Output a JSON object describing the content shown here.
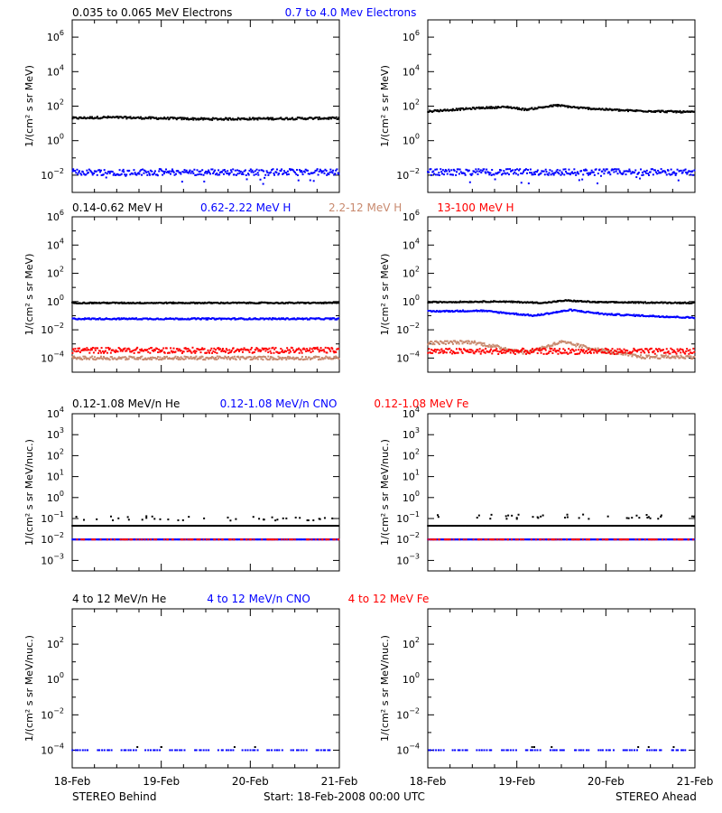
{
  "footer": {
    "left": "STEREO Behind",
    "center": "Start: 18-Feb-2008 00:00 UTC",
    "right": "STEREO Ahead"
  },
  "x_tick_labels": [
    "18-Feb",
    "19-Feb",
    "20-Feb",
    "21-Feb"
  ],
  "x_range_days": [
    0,
    3
  ],
  "chart_data": [
    {
      "type": "scatter",
      "row": "electrons",
      "spacecraft": "STEREO Behind",
      "title": "",
      "legend": [
        {
          "text": "0.035 to 0.065 MeV Electrons",
          "color": "#000000"
        },
        {
          "text": "0.7 to 4.0 Mev Electrons",
          "color": "#0000ff"
        }
      ],
      "ylabel": "1/(cm² s sr MeV)",
      "yscale": "log",
      "ylim_exp": [
        -3,
        7
      ],
      "ytick_exps": [
        -2,
        0,
        2,
        4,
        6
      ],
      "xlabel": "",
      "series": [
        {
          "name": "0.035 to 0.065 MeV Electrons",
          "color": "#000000",
          "level": 20,
          "noise": 0.06,
          "profile": [
            [
              0,
              0
            ],
            [
              0.4,
              0.05
            ],
            [
              1.5,
              -0.05
            ],
            [
              3,
              0
            ]
          ]
        },
        {
          "name": "0.7 to 4.0 Mev Electrons",
          "color": "#0000ff",
          "level": 0.015,
          "noise": 0.18,
          "profile": [
            [
              0,
              0
            ],
            [
              3,
              0
            ]
          ],
          "dips": true
        }
      ]
    },
    {
      "type": "scatter",
      "row": "electrons",
      "spacecraft": "STEREO Ahead",
      "title": "",
      "legend": [],
      "ylabel": "1/(cm² s sr MeV)",
      "yscale": "log",
      "ylim_exp": [
        -3,
        7
      ],
      "ytick_exps": [
        -2,
        0,
        2,
        4,
        6
      ],
      "xlabel": "",
      "series": [
        {
          "name": "0.035 to 0.065 MeV Electrons",
          "color": "#000000",
          "level": 50,
          "noise": 0.05,
          "profile": [
            [
              0,
              0
            ],
            [
              0.6,
              0.2
            ],
            [
              0.9,
              0.25
            ],
            [
              1.1,
              0.1
            ],
            [
              1.45,
              0.35
            ],
            [
              1.7,
              0.2
            ],
            [
              2.2,
              0.05
            ],
            [
              3,
              -0.05
            ]
          ]
        },
        {
          "name": "0.7 to 4.0 Mev Electrons",
          "color": "#0000ff",
          "level": 0.015,
          "noise": 0.18,
          "profile": [
            [
              0,
              0
            ],
            [
              3,
              0
            ]
          ],
          "dips": true
        }
      ]
    },
    {
      "type": "scatter",
      "row": "protons",
      "spacecraft": "STEREO Behind",
      "title": "",
      "legend": [
        {
          "text": "0.14-0.62 MeV H",
          "color": "#000000"
        },
        {
          "text": "0.62-2.22 MeV H",
          "color": "#0000ff"
        },
        {
          "text": "2.2-12 MeV H",
          "color": "#c8896e"
        },
        {
          "text": "13-100 MeV H",
          "color": "#ff0000"
        }
      ],
      "ylabel": "1/(cm² s sr MeV)",
      "yscale": "log",
      "ylim_exp": [
        -5,
        6
      ],
      "ytick_exps": [
        -4,
        -2,
        0,
        2,
        4,
        6
      ],
      "xlabel": "",
      "series": [
        {
          "name": "0.14-0.62 MeV H",
          "color": "#000000",
          "level": 0.8,
          "noise": 0.04,
          "profile": [
            [
              0,
              0
            ],
            [
              3,
              0
            ]
          ]
        },
        {
          "name": "0.62-2.22 MeV H",
          "color": "#0000ff",
          "level": 0.06,
          "noise": 0.05,
          "profile": [
            [
              0,
              0
            ],
            [
              3,
              0
            ]
          ]
        },
        {
          "name": "2.2-12 MeV H",
          "color": "#c8896e",
          "level": 0.0001,
          "noise": 0.12,
          "profile": [
            [
              0,
              0
            ],
            [
              3,
              0
            ]
          ]
        },
        {
          "name": "13-100 MeV H",
          "color": "#ff0000",
          "level": 0.00035,
          "noise": 0.2,
          "profile": [
            [
              0,
              0
            ],
            [
              3,
              0
            ]
          ]
        }
      ]
    },
    {
      "type": "scatter",
      "row": "protons",
      "spacecraft": "STEREO Ahead",
      "title": "",
      "legend": [],
      "ylabel": "1/(cm² s sr MeV)",
      "yscale": "log",
      "ylim_exp": [
        -5,
        6
      ],
      "ytick_exps": [
        -4,
        -2,
        0,
        2,
        4,
        6
      ],
      "xlabel": "",
      "series": [
        {
          "name": "0.14-0.62 MeV H",
          "color": "#000000",
          "level": 0.9,
          "noise": 0.04,
          "profile": [
            [
              0,
              0
            ],
            [
              0.8,
              0.05
            ],
            [
              1.3,
              -0.05
            ],
            [
              1.55,
              0.12
            ],
            [
              1.9,
              0.0
            ],
            [
              3,
              -0.05
            ]
          ]
        },
        {
          "name": "0.62-2.22 MeV H",
          "color": "#0000ff",
          "level": 0.2,
          "noise": 0.05,
          "profile": [
            [
              0,
              0
            ],
            [
              0.6,
              0.05
            ],
            [
              1.2,
              -0.3
            ],
            [
              1.6,
              0.1
            ],
            [
              2.0,
              -0.2
            ],
            [
              3,
              -0.45
            ]
          ]
        },
        {
          "name": "2.2-12 MeV H",
          "color": "#c8896e",
          "level": 0.0012,
          "noise": 0.12,
          "profile": [
            [
              0,
              0
            ],
            [
              0.5,
              0.05
            ],
            [
              1.1,
              -0.7
            ],
            [
              1.5,
              0.05
            ],
            [
              2.0,
              -0.6
            ],
            [
              2.4,
              -1.0
            ],
            [
              3,
              -1.0
            ]
          ]
        },
        {
          "name": "13-100 MeV H",
          "color": "#ff0000",
          "level": 0.0003,
          "noise": 0.2,
          "profile": [
            [
              0,
              0
            ],
            [
              3,
              0
            ]
          ]
        }
      ]
    },
    {
      "type": "scatter",
      "row": "heavy-low",
      "spacecraft": "STEREO Behind",
      "title": "",
      "legend": [
        {
          "text": "0.12-1.08 MeV/n He",
          "color": "#000000"
        },
        {
          "text": "0.12-1.08 MeV/n CNO",
          "color": "#0000ff"
        },
        {
          "text": "0.12-1.08 MeV Fe",
          "color": "#ff0000"
        }
      ],
      "ylabel": "1/(cm² s sr MeV/nuc.)",
      "yscale": "log",
      "ylim_exp": [
        -3.5,
        4
      ],
      "ytick_exps": [
        -3,
        -2,
        -1,
        0,
        1,
        2,
        3,
        4
      ],
      "xlabel": "",
      "series": [
        {
          "name": "0.12-1.08 MeV/n He",
          "color": "#000000",
          "level": 0.045,
          "noise": 0,
          "profile": [
            [
              0,
              0
            ],
            [
              3,
              0
            ]
          ],
          "sparse_high": 0.1
        },
        {
          "name": "0.12-1.08 MeV/n CNO",
          "color": "#0000ff",
          "level": 0.01,
          "noise": 0,
          "profile": [
            [
              0,
              0
            ],
            [
              3,
              0
            ]
          ]
        },
        {
          "name": "0.12-1.08 MeV Fe",
          "color": "#ff0000",
          "level": 0.01,
          "noise": 0,
          "profile": [
            [
              0,
              0
            ],
            [
              3,
              0
            ]
          ],
          "sparse": true
        }
      ]
    },
    {
      "type": "scatter",
      "row": "heavy-low",
      "spacecraft": "STEREO Ahead",
      "title": "",
      "legend": [],
      "ylabel": "1/(cm² s sr MeV/nuc.)",
      "yscale": "log",
      "ylim_exp": [
        -3.5,
        4
      ],
      "ytick_exps": [
        -3,
        -2,
        -1,
        0,
        1,
        2,
        3,
        4
      ],
      "xlabel": "",
      "series": [
        {
          "name": "0.12-1.08 MeV/n He",
          "color": "#000000",
          "level": 0.045,
          "noise": 0,
          "profile": [
            [
              0,
              0
            ],
            [
              3,
              0
            ]
          ],
          "sparse_high": 0.12
        },
        {
          "name": "0.12-1.08 MeV/n CNO",
          "color": "#0000ff",
          "level": 0.01,
          "noise": 0,
          "profile": [
            [
              0,
              0
            ],
            [
              3,
              0
            ]
          ]
        },
        {
          "name": "0.12-1.08 MeV Fe",
          "color": "#ff0000",
          "level": 0.01,
          "noise": 0,
          "profile": [
            [
              0,
              0
            ],
            [
              3,
              0
            ]
          ],
          "sparse": true
        }
      ]
    },
    {
      "type": "scatter",
      "row": "heavy-high",
      "spacecraft": "STEREO Behind",
      "title": "",
      "legend": [
        {
          "text": "4 to 12 MeV/n He",
          "color": "#000000"
        },
        {
          "text": "4 to 12 MeV/n CNO",
          "color": "#0000ff"
        },
        {
          "text": "4 to 12 MeV Fe",
          "color": "#ff0000"
        }
      ],
      "ylabel": "1/(cm² s sr MeV/nuc.)",
      "yscale": "log",
      "ylim_exp": [
        -5,
        4
      ],
      "ytick_exps": [
        -4,
        -2,
        0,
        2
      ],
      "xlabel": "",
      "series": [
        {
          "name": "4 to 12 MeV/n CNO",
          "color": "#0000ff",
          "level": 0.0001,
          "noise": 0,
          "profile": [
            [
              0,
              0
            ],
            [
              3,
              0
            ]
          ],
          "dashed": true
        },
        {
          "name": "4 to 12 MeV/n He",
          "color": "#000000",
          "level": 0.00015,
          "noise": 0,
          "profile": [
            [
              0,
              0
            ],
            [
              3,
              0
            ]
          ],
          "few": 5
        }
      ]
    },
    {
      "type": "scatter",
      "row": "heavy-high",
      "spacecraft": "STEREO Ahead",
      "title": "",
      "legend": [],
      "ylabel": "1/(cm² s sr MeV/nuc.)",
      "yscale": "log",
      "ylim_exp": [
        -5,
        4
      ],
      "ytick_exps": [
        -4,
        -2,
        0,
        2
      ],
      "xlabel": "",
      "series": [
        {
          "name": "4 to 12 MeV/n CNO",
          "color": "#0000ff",
          "level": 0.0001,
          "noise": 0,
          "profile": [
            [
              0,
              0
            ],
            [
              3,
              0
            ]
          ],
          "dashed": true
        },
        {
          "name": "4 to 12 MeV/n He",
          "color": "#000000",
          "level": 0.00015,
          "noise": 0,
          "profile": [
            [
              0,
              0
            ],
            [
              3,
              0
            ]
          ],
          "few": 6
        }
      ]
    }
  ]
}
